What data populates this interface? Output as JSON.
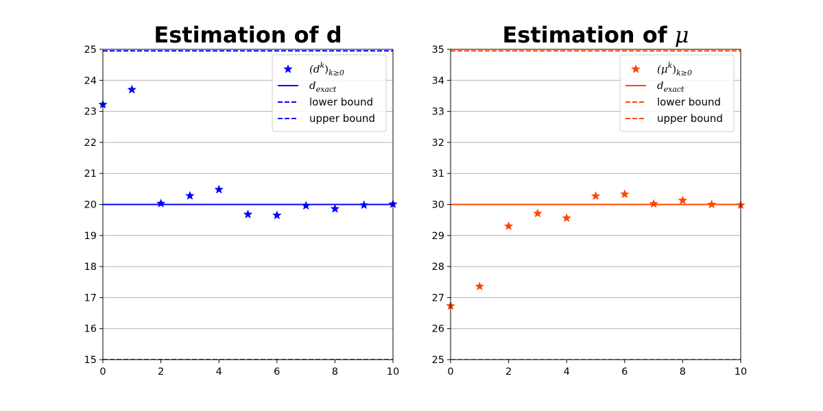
{
  "chart_data": [
    {
      "type": "scatter",
      "title": "Estimation of d",
      "title_math_symbol": "",
      "xlim": [
        0,
        10
      ],
      "ylim": [
        15,
        25
      ],
      "x_ticks": [
        0,
        2,
        4,
        6,
        8,
        10
      ],
      "y_ticks": [
        15,
        16,
        17,
        18,
        19,
        20,
        21,
        22,
        23,
        24,
        25
      ],
      "grid": "horizontal",
      "color": "#0000ff",
      "legend_position": "upper-right",
      "series": [
        {
          "kind": "points",
          "legend": "(d",
          "legend_sup": "k",
          "legend_sub": "k≥0",
          "x": [
            0,
            1,
            2,
            3,
            4,
            5,
            6,
            7,
            8,
            9,
            10
          ],
          "y": [
            23.22,
            23.7,
            20.03,
            20.28,
            20.48,
            19.68,
            19.65,
            19.96,
            19.86,
            19.98,
            20.01
          ]
        },
        {
          "kind": "hline",
          "style": "solid",
          "legend": "d",
          "legend_sub": "exact",
          "y": 20
        },
        {
          "kind": "hline",
          "style": "dashed",
          "legend": "lower bound",
          "y": 15
        },
        {
          "kind": "hline",
          "style": "dashed",
          "legend": "upper bound",
          "y": 24.95
        }
      ]
    },
    {
      "type": "scatter",
      "title": "Estimation of ",
      "title_math_symbol": "μ",
      "xlim": [
        0,
        10
      ],
      "ylim": [
        25,
        35
      ],
      "x_ticks": [
        0,
        2,
        4,
        6,
        8,
        10
      ],
      "y_ticks": [
        25,
        26,
        27,
        28,
        29,
        30,
        31,
        32,
        33,
        34,
        35
      ],
      "grid": "horizontal",
      "color": "#ff4500",
      "legend_position": "upper-right",
      "series": [
        {
          "kind": "points",
          "legend": "(μ",
          "legend_sup": "k",
          "legend_sub": "k≥0",
          "x": [
            0,
            1,
            2,
            3,
            4,
            5,
            6,
            7,
            8,
            9,
            10
          ],
          "y": [
            26.73,
            27.36,
            29.3,
            29.71,
            29.56,
            30.27,
            30.33,
            30.02,
            30.13,
            30.0,
            29.98
          ]
        },
        {
          "kind": "hline",
          "style": "solid",
          "legend": "d",
          "legend_sub": "exact",
          "y": 30
        },
        {
          "kind": "hline",
          "style": "dashed",
          "legend": "lower bound",
          "y": 25
        },
        {
          "kind": "hline",
          "style": "dashed",
          "legend": "upper bound",
          "y": 34.95
        }
      ]
    }
  ]
}
